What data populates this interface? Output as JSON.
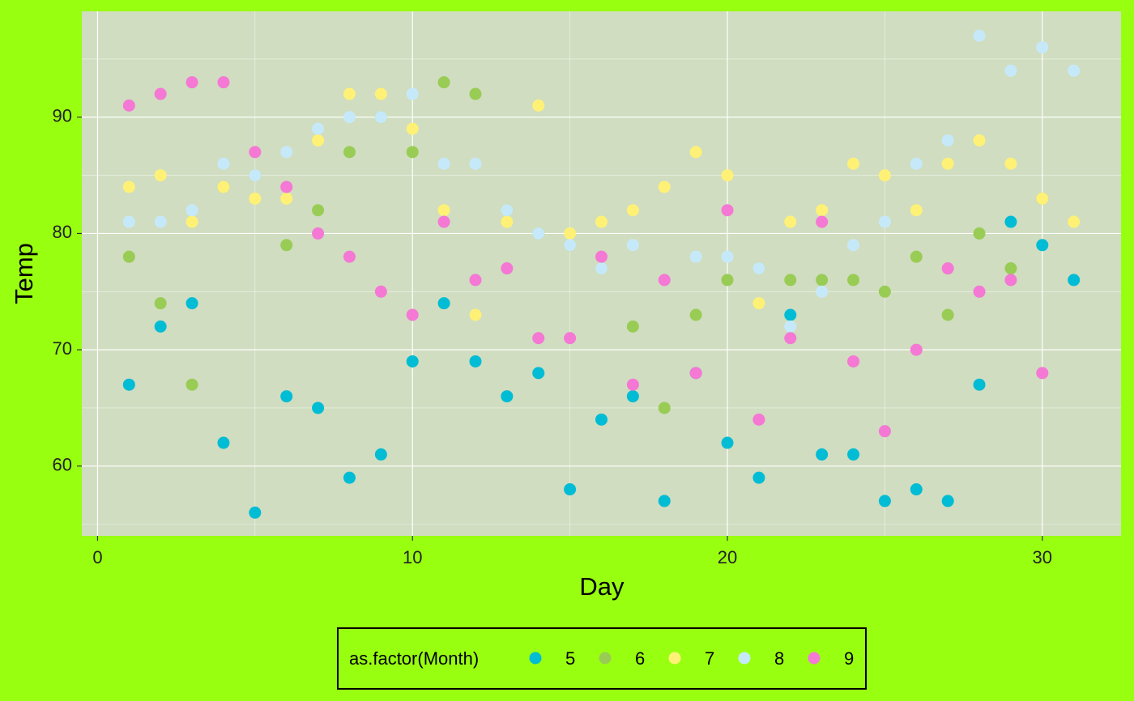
{
  "chart_data": {
    "type": "scatter",
    "x_label": "Day",
    "y_label": "Temp",
    "legend_title": "as.factor(Month)",
    "legend_position": "bottom",
    "xlim": [
      -0.5,
      32.5
    ],
    "xticks": [
      0,
      10,
      20,
      30
    ],
    "x_minor_ticks": [
      5,
      15,
      25
    ],
    "ylim": [
      54,
      99.1
    ],
    "yticks": [
      60,
      70,
      80,
      90
    ],
    "y_minor_ticks": [
      55,
      65,
      75,
      85,
      95
    ],
    "grid": true,
    "series": [
      {
        "name": "5",
        "color": "#00BCD4",
        "x": [
          1,
          2,
          3,
          4,
          5,
          6,
          7,
          8,
          9,
          10,
          11,
          12,
          13,
          14,
          15,
          16,
          17,
          18,
          19,
          20,
          21,
          22,
          23,
          24,
          25,
          26,
          27,
          28,
          29,
          30,
          31
        ],
        "values": [
          67,
          72,
          74,
          62,
          56,
          66,
          65,
          59,
          61,
          69,
          74,
          69,
          66,
          68,
          58,
          64,
          66,
          57,
          68,
          62,
          59,
          73,
          61,
          61,
          57,
          58,
          57,
          67,
          81,
          79,
          76
        ]
      },
      {
        "name": "6",
        "color": "#99CC55",
        "x": [
          1,
          2,
          3,
          4,
          5,
          6,
          7,
          8,
          9,
          10,
          11,
          12,
          13,
          14,
          15,
          16,
          17,
          18,
          19,
          20,
          21,
          22,
          23,
          24,
          25,
          26,
          27,
          28,
          29,
          30
        ],
        "values": [
          78,
          74,
          67,
          84,
          85,
          79,
          82,
          87,
          90,
          87,
          93,
          92,
          82,
          80,
          79,
          77,
          72,
          65,
          73,
          76,
          77,
          76,
          76,
          76,
          75,
          78,
          73,
          80,
          77,
          83
        ]
      },
      {
        "name": "7",
        "color": "#FFF176",
        "x": [
          1,
          2,
          3,
          4,
          5,
          6,
          7,
          8,
          9,
          10,
          11,
          12,
          13,
          14,
          15,
          16,
          17,
          18,
          19,
          20,
          21,
          22,
          23,
          24,
          25,
          26,
          27,
          28,
          29,
          30,
          31
        ],
        "values": [
          84,
          85,
          81,
          84,
          83,
          83,
          88,
          92,
          92,
          89,
          82,
          73,
          81,
          91,
          80,
          81,
          82,
          84,
          87,
          85,
          74,
          81,
          82,
          86,
          85,
          82,
          86,
          88,
          86,
          83,
          81
        ]
      },
      {
        "name": "8",
        "color": "#C6E9FA",
        "x": [
          1,
          2,
          3,
          4,
          5,
          6,
          7,
          8,
          9,
          10,
          11,
          12,
          13,
          14,
          15,
          16,
          17,
          18,
          19,
          20,
          21,
          22,
          23,
          24,
          25,
          26,
          27,
          28,
          29,
          30,
          31
        ],
        "values": [
          81,
          81,
          82,
          86,
          85,
          87,
          89,
          90,
          90,
          92,
          86,
          86,
          82,
          80,
          79,
          77,
          79,
          76,
          78,
          78,
          77,
          72,
          75,
          79,
          81,
          86,
          88,
          97,
          94,
          96,
          94
        ]
      },
      {
        "name": "9",
        "color": "#F478D4",
        "x": [
          1,
          2,
          3,
          4,
          5,
          6,
          7,
          8,
          9,
          10,
          11,
          12,
          13,
          14,
          15,
          16,
          17,
          18,
          19,
          20,
          21,
          22,
          23,
          24,
          25,
          26,
          27,
          28,
          29,
          30
        ],
        "values": [
          91,
          92,
          93,
          93,
          87,
          84,
          80,
          78,
          75,
          73,
          81,
          76,
          77,
          71,
          71,
          78,
          67,
          76,
          68,
          82,
          64,
          71,
          81,
          69,
          63,
          70,
          77,
          75,
          76,
          68
        ]
      }
    ]
  }
}
